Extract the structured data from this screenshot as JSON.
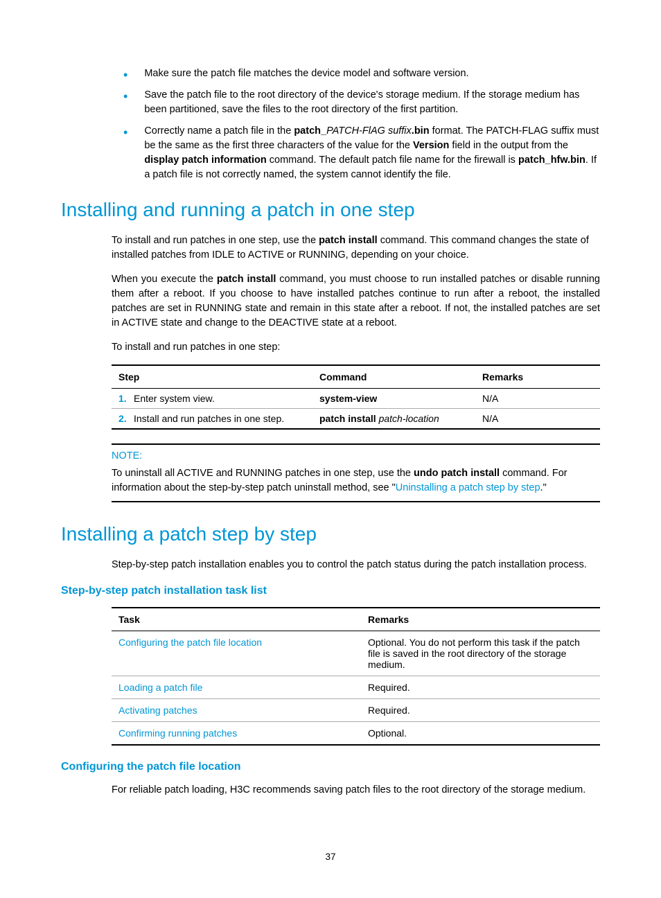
{
  "colors": {
    "accent": "#0096d6",
    "text": "#000000",
    "background": "#ffffff",
    "rule_light": "#aaaaaa"
  },
  "typography": {
    "body_family": "Arial, Helvetica, sans-serif",
    "body_size_pt": 11,
    "h2_size_pt": 21,
    "h3_size_pt": 12
  },
  "bullets": [
    {
      "text": "Make sure the patch file matches the device model and software version."
    },
    {
      "text_html": "Save the patch file to the root directory of the device's storage medium. If the storage medium has been partitioned, save the files to the root directory of the first partition."
    },
    {
      "text_html": "Correctly name a patch file in the <b>patch_</b><i class='italic'>PATCH-FlAG suffix</i><b>.bin</b> format. The PATCH-FLAG suffix must be the same as the first three characters of the value for the <b>Version</b> field in the output from the <b>display patch information</b> command. The default patch file name for the firewall is <b>patch_hfw.bin</b>. If a patch file is not correctly named, the system cannot identify the file."
    }
  ],
  "section1": {
    "title": "Installing and running a patch in one step",
    "p1_html": "To install and run patches in one step, use the <b>patch install</b> command. This command changes the state of installed patches from IDLE to ACTIVE or RUNNING, depending on your choice.",
    "p2_html": "When you execute the <b>patch install</b> command, you must choose to run installed patches or disable running them after a reboot. If you choose to have installed patches continue to run after a reboot, the installed patches are set in RUNNING state and remain in this state after a reboot. If not, the installed patches are set in ACTIVE state and change to the DEACTIVE state at a reboot.",
    "p3": "To install and run patches in one step:",
    "table": {
      "headers": [
        "Step",
        "Command",
        "Remarks"
      ],
      "rows": [
        {
          "num": "1.",
          "step": "Enter system view.",
          "command_html": "<b>system-view</b>",
          "remarks": "N/A"
        },
        {
          "num": "2.",
          "step": "Install and run patches in one step.",
          "command_html": "<b>patch install</b> <i class='italic'>patch-location</i>",
          "remarks": "N/A"
        }
      ]
    },
    "note": {
      "label": "NOTE:",
      "text_html": "To uninstall all ACTIVE and RUNNING patches in one step, use the <b>undo patch install</b> command. For information about the step-by-step patch uninstall method, see \"<span class='link'>Uninstalling a patch step by step</span>.\""
    }
  },
  "section2": {
    "title": "Installing a patch step by step",
    "p1": "Step-by-step patch installation enables you to control the patch status during the patch installation process.",
    "sub1": {
      "title": "Step-by-step patch installation task list",
      "table": {
        "headers": [
          "Task",
          "Remarks"
        ],
        "rows": [
          {
            "task": "Configuring the patch file location",
            "task_link": true,
            "remarks": "Optional. You do not perform this task if the patch file is saved in the root directory of the storage medium."
          },
          {
            "task": "Loading a patch file",
            "task_link": true,
            "remarks": "Required."
          },
          {
            "task": "Activating patches",
            "task_link": true,
            "remarks": "Required."
          },
          {
            "task": "Confirming running patches",
            "task_link": true,
            "remarks": "Optional."
          }
        ]
      }
    },
    "sub2": {
      "title": "Configuring the patch file location",
      "p1": "For reliable patch loading, H3C recommends saving patch files to the root directory of the storage medium."
    }
  },
  "page_number": "37"
}
